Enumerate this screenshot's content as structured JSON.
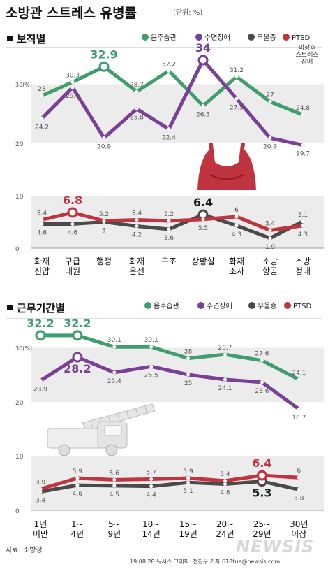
{
  "title": "소방관 스트레스 유병률",
  "unit": "(단위: %)",
  "colors": {
    "green": "#3f9d6e",
    "purple": "#7a3f96",
    "dark": "#4a4a4a",
    "red": "#c0343f",
    "band": "#ececec"
  },
  "legend": [
    "음주습관",
    "수면장애",
    "우울증",
    "PTSD"
  ],
  "legend_note": [
    "외상후",
    "스트레스",
    "장애"
  ],
  "chart_data": [
    {
      "type": "line",
      "title": "보직별",
      "categories": [
        "화재\n진압",
        "구급\n대원",
        "행정",
        "화재\n운전",
        "구조",
        "상황실",
        "화재\n조사",
        "소방\n항공",
        "소방\n정대"
      ],
      "upper_ylim": [
        20,
        30
      ],
      "lower_ylim": [
        0,
        10
      ],
      "upper_ticks": [
        "30(%)",
        "20"
      ],
      "lower_ticks": [
        "10",
        "0"
      ],
      "series": [
        {
          "name": "음주습관",
          "values": [
            28,
            30.3,
            32.9,
            28.7,
            32.2,
            26.3,
            31.2,
            27,
            24.8
          ]
        },
        {
          "name": "수면장애",
          "values": [
            24.2,
            29.4,
            20.9,
            25.8,
            22.4,
            34,
            27.5,
            20.9,
            19.7
          ]
        },
        {
          "name": "우울증",
          "values": [
            4.6,
            4.6,
            5,
            4.2,
            3.6,
            6.4,
            4.3,
            1.9,
            5.1
          ]
        },
        {
          "name": "PTSD",
          "values": [
            5.4,
            6.8,
            5.2,
            5.4,
            5.2,
            5.5,
            6,
            3.4,
            4.3
          ]
        }
      ]
    },
    {
      "type": "line",
      "title": "근무기간별",
      "categories": [
        "1년\n미만",
        "1~\n4년",
        "5~\n9년",
        "10~\n14년",
        "15~\n19년",
        "20~\n24년",
        "25~\n29년",
        "30년\n이상"
      ],
      "upper_ylim": [
        20,
        30
      ],
      "lower_ylim": [
        0,
        10
      ],
      "upper_ticks": [
        "30(%)",
        "20"
      ],
      "lower_ticks": [
        "10",
        "0"
      ],
      "series": [
        {
          "name": "음주습관",
          "values": [
            32.2,
            32.2,
            30.1,
            30.1,
            28,
            28.7,
            27.6,
            24.1
          ]
        },
        {
          "name": "수면장애",
          "values": [
            23.9,
            28.2,
            25.4,
            26.5,
            25,
            24.1,
            23.6,
            18.7
          ]
        },
        {
          "name": "우울증",
          "values": [
            3.4,
            4.6,
            4.5,
            4.4,
            5.1,
            4.8,
            5.3,
            3.8
          ]
        },
        {
          "name": "PTSD",
          "values": [
            3.9,
            5.9,
            5.6,
            5.7,
            5.9,
            5.4,
            6.4,
            6
          ]
        }
      ]
    }
  ],
  "source": "자료: 소방청",
  "credit": "19.08.28  뉴시스 그래픽: 전진우 기자 618tue@newsis.com",
  "watermark": "NEWSIS"
}
